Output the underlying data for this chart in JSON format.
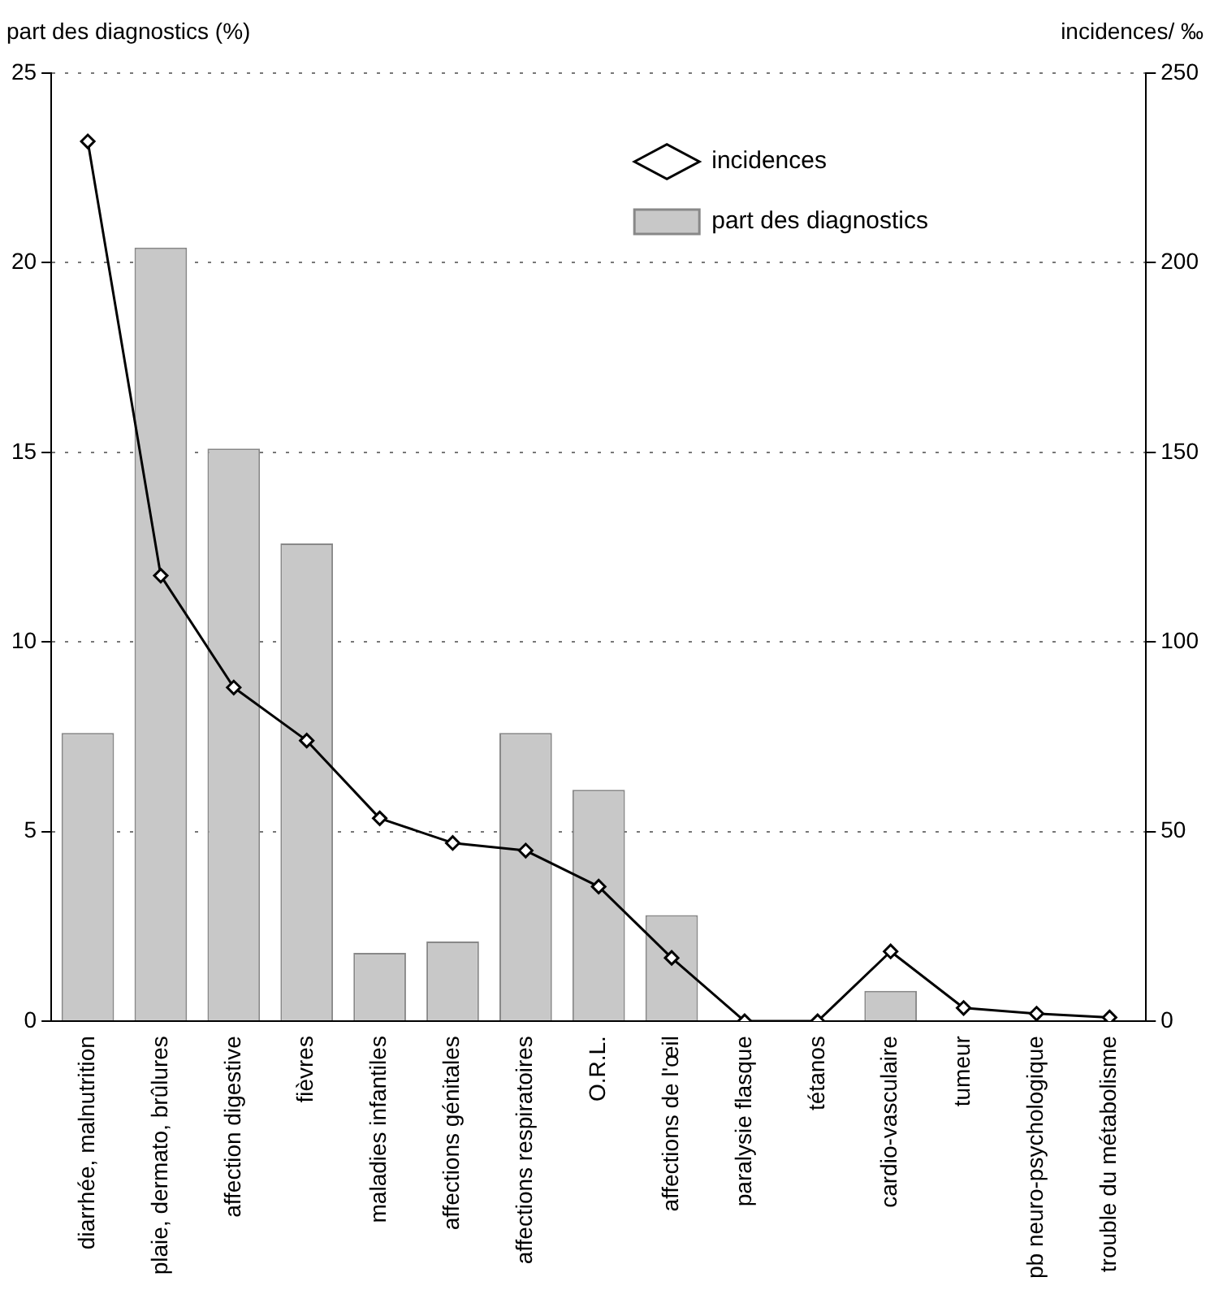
{
  "chart_data": {
    "type": "bar",
    "ylabel": "part des diagnostics (%)",
    "y2label": "incidences/ ‰",
    "categories": [
      "diarrhée, malnutrition",
      "plaie, dermato, brûlures",
      "affection digestive",
      "fièvres",
      "maladies infantiles",
      "affections génitales",
      "affections respiratoires",
      "O.R.L.",
      "affections de l'œil",
      "paralysie flasque",
      "tétanos",
      "cardio-vasculaire",
      "tumeur",
      "pb neuro-psychologique",
      "trouble du métabolisme"
    ],
    "series": [
      {
        "name": "incidences",
        "type": "line",
        "axis": "y2",
        "color": "#000000",
        "marker": "diamond",
        "line_style": "solid",
        "values": [
          232,
          117.5,
          88,
          74,
          53.5,
          47,
          45,
          35.5,
          16.7,
          0,
          0,
          18.4,
          3.5,
          2,
          1
        ]
      },
      {
        "name": "part des diagnostics",
        "color": "#c8c8c8",
        "values": [
          7.6,
          20.4,
          15.1,
          12.6,
          1.8,
          2.1,
          7.6,
          6.1,
          2.8,
          0,
          0,
          0.8,
          0,
          0,
          0
        ]
      }
    ],
    "ylim": [
      0,
      25
    ],
    "yticks": [
      0,
      5,
      10,
      15,
      20,
      25
    ],
    "y2lim": [
      0,
      250
    ],
    "y2ticks": [
      0,
      50,
      100,
      150,
      200,
      250
    ],
    "grid": "y",
    "legend": "top right"
  }
}
